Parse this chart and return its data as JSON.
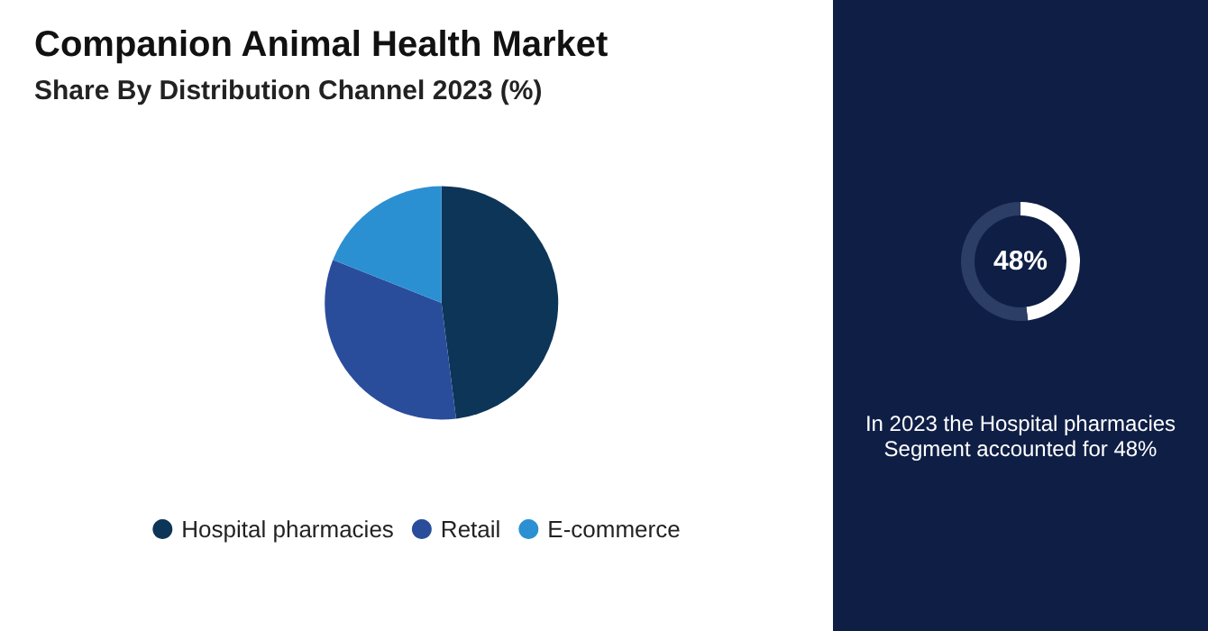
{
  "chart_data": [
    {
      "type": "pie",
      "title": "Companion Animal Health Market",
      "subtitle": "Share By Distribution Channel 2023 (%)",
      "categories": [
        "Hospital pharmacies",
        "Retail",
        "E-commerce"
      ],
      "values": [
        48,
        33,
        19
      ],
      "colors": [
        "#0d3557",
        "#2a4d9b",
        "#2a90d2"
      ],
      "legend": "bottom"
    },
    {
      "type": "donut",
      "title": "48%",
      "categories": [
        null,
        null
      ],
      "values": [
        48,
        52
      ],
      "colors": [
        "#ffffff",
        "#2c3d66"
      ],
      "annotations": [
        "In 2023 the Hospital pharmacies Segment accounted for 48%"
      ]
    }
  ]
}
